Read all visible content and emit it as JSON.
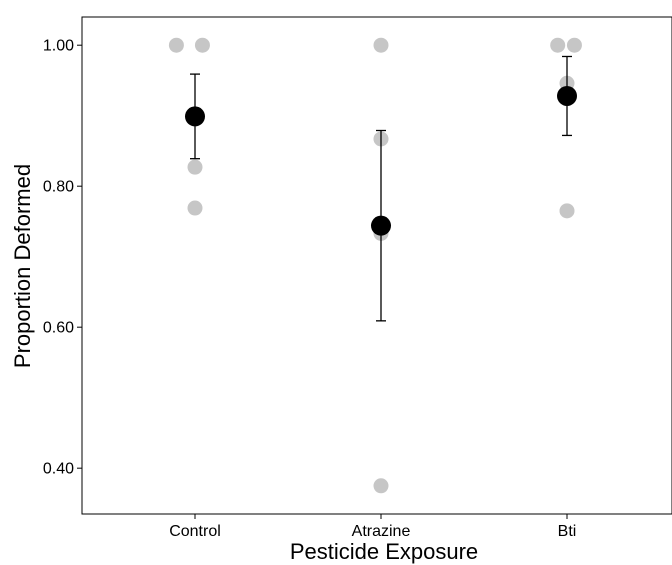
{
  "chart_data": {
    "type": "scatter",
    "title": "",
    "xlabel": "Pesticide Exposure",
    "ylabel": "Proportion Deformed",
    "categories": [
      "Control",
      "Atrazine",
      "Bti"
    ],
    "ylim": [
      0.335,
      1.04
    ],
    "yticks": [
      0.4,
      0.6,
      0.8,
      1.0
    ],
    "ytick_labels": [
      "0.40",
      "0.60",
      "0.80",
      "1.00"
    ],
    "grid": false,
    "legend": "none",
    "raw_points": [
      {
        "category": "Control",
        "offset": -0.1,
        "y": 1.0
      },
      {
        "category": "Control",
        "offset": 0.04,
        "y": 1.0
      },
      {
        "category": "Control",
        "offset": 0.0,
        "y": 0.827
      },
      {
        "category": "Control",
        "offset": 0.0,
        "y": 0.769
      },
      {
        "category": "Atrazine",
        "offset": 0.0,
        "y": 1.0
      },
      {
        "category": "Atrazine",
        "offset": 0.0,
        "y": 0.867
      },
      {
        "category": "Atrazine",
        "offset": 0.0,
        "y": 0.733
      },
      {
        "category": "Atrazine",
        "offset": 0.0,
        "y": 0.375
      },
      {
        "category": "Bti",
        "offset": -0.05,
        "y": 1.0
      },
      {
        "category": "Bti",
        "offset": 0.04,
        "y": 1.0
      },
      {
        "category": "Bti",
        "offset": 0.0,
        "y": 0.946
      },
      {
        "category": "Bti",
        "offset": 0.0,
        "y": 0.765
      }
    ],
    "means": [
      {
        "category": "Control",
        "mean": 0.899,
        "lower": 0.839,
        "upper": 0.959
      },
      {
        "category": "Atrazine",
        "mean": 0.744,
        "lower": 0.609,
        "upper": 0.879
      },
      {
        "category": "Bti",
        "mean": 0.928,
        "lower": 0.872,
        "upper": 0.984
      }
    ],
    "colors": {
      "raw": "#c6c6c6",
      "mean": "#000000",
      "errorbar": "#000000",
      "axis": "#000000"
    }
  }
}
